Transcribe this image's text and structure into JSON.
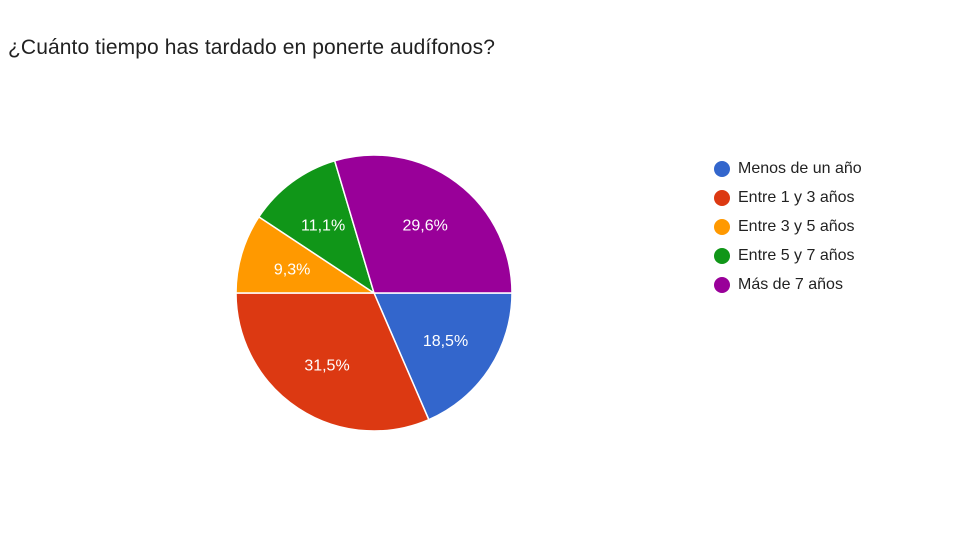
{
  "title": "¿Cuánto tiempo has tardado en ponerte audífonos?",
  "legend": [
    {
      "label": "Menos de un año",
      "color": "#3366cc"
    },
    {
      "label": "Entre 1 y 3 años",
      "color": "#dc3912"
    },
    {
      "label": "Entre 3 y 5 años",
      "color": "#ff9900"
    },
    {
      "label": "Entre 5 y 7 años",
      "color": "#109618"
    },
    {
      "label": "Más de 7 años",
      "color": "#990099"
    }
  ],
  "chart_data": {
    "type": "pie",
    "title": "¿Cuánto tiempo has tardado en ponerte audífonos?",
    "categories": [
      "Menos de un año",
      "Entre 1 y 3 años",
      "Entre 3 y 5 años",
      "Entre 5 y 7 años",
      "Más de 7 años"
    ],
    "values": [
      18.5,
      31.5,
      9.3,
      11.1,
      29.6
    ],
    "value_labels": [
      "18,5%",
      "31,5%",
      "9,3%",
      "11,1%",
      "29,6%"
    ],
    "colors": [
      "#3366cc",
      "#dc3912",
      "#ff9900",
      "#109618",
      "#990099"
    ],
    "start_angle": "3 o'clock, clockwise",
    "legend_position": "right"
  }
}
